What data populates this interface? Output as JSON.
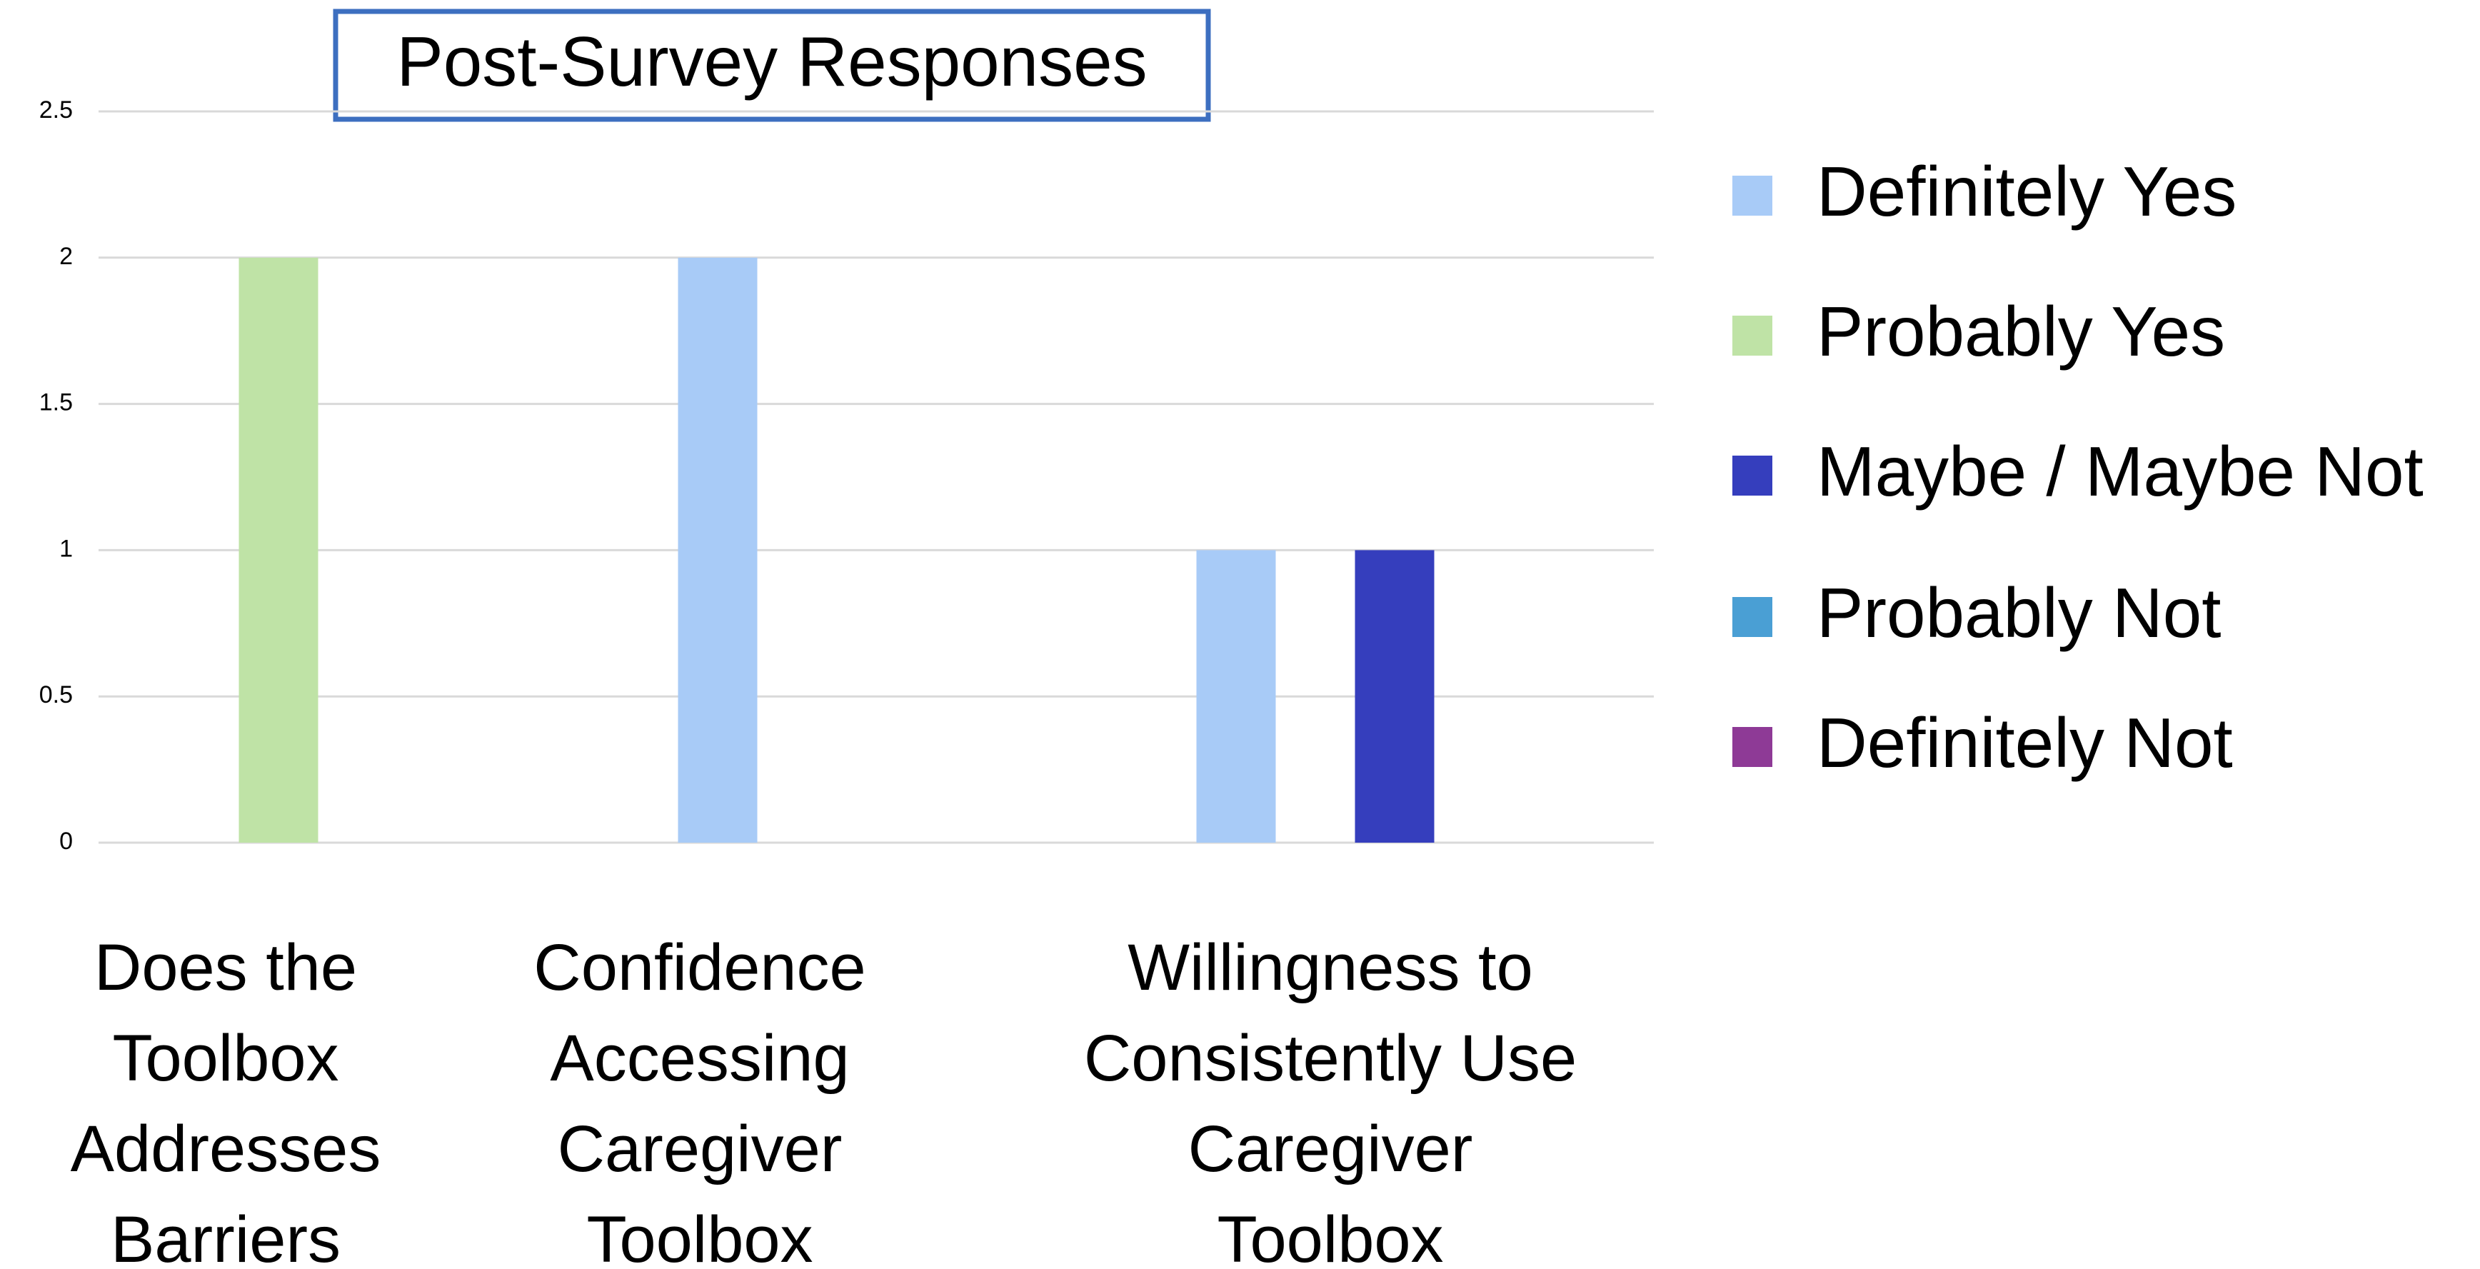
{
  "chart_data": {
    "type": "bar",
    "title": "Post-Survey Responses",
    "categories": [
      "Does the\nToolbox\nAddresses\nBarriers",
      "Confidence\nAccessing\nCaregiver\nToolbox",
      "Willingness to\nConsistently Use\nCaregiver\nToolbox"
    ],
    "series": [
      {
        "name": "Definitely Yes",
        "color": "#a8cbf7",
        "values": [
          0,
          2,
          1
        ]
      },
      {
        "name": "Probably Yes",
        "color": "#bfe3a6",
        "values": [
          2,
          0,
          0
        ]
      },
      {
        "name": "Maybe / Maybe Not",
        "color": "#353ebd",
        "values": [
          0,
          0,
          1
        ]
      },
      {
        "name": "Probably Not",
        "color": "#4a9fd4",
        "values": [
          0,
          0,
          0
        ]
      },
      {
        "name": "Definitely Not",
        "color": "#8e3a96",
        "values": [
          0,
          0,
          0
        ]
      }
    ],
    "ylim": [
      0,
      2.5
    ],
    "yticks": [
      0,
      0.5,
      1,
      1.5,
      2,
      2.5
    ],
    "grid": true,
    "legend": "right"
  }
}
